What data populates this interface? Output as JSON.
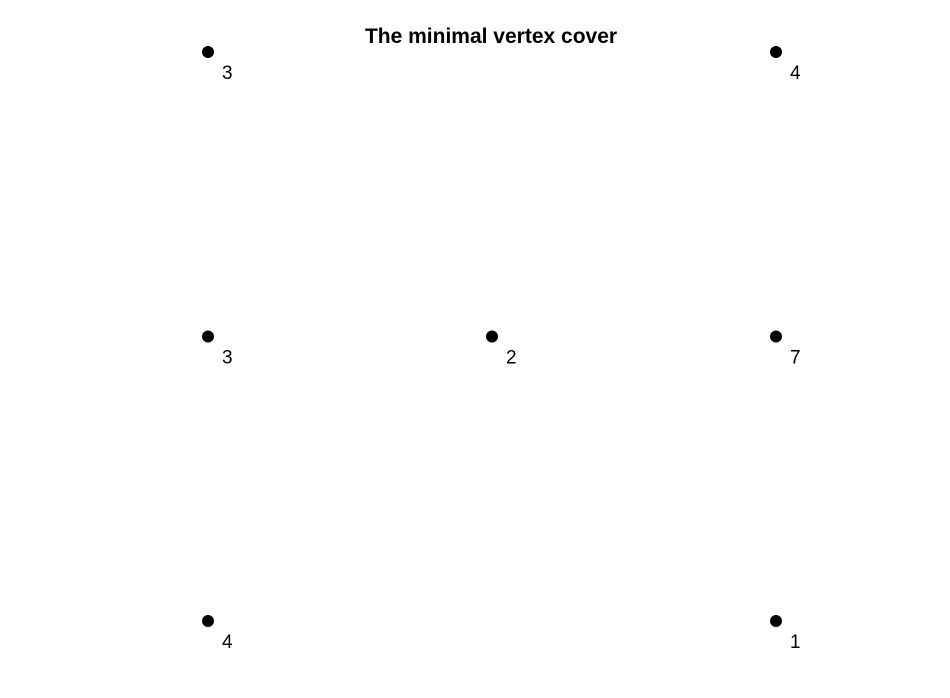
{
  "title": "The minimal vertex cover",
  "colors": {
    "vertex": "#000000",
    "text": "#000000",
    "background": "#ffffff"
  },
  "grid": {
    "columns": 3,
    "rows": 3
  },
  "vertices": [
    {
      "label": "3",
      "col": 0,
      "row": 0
    },
    {
      "label": "4",
      "col": 2,
      "row": 0
    },
    {
      "label": "3",
      "col": 0,
      "row": 1
    },
    {
      "label": "2",
      "col": 1,
      "row": 1
    },
    {
      "label": "7",
      "col": 2,
      "row": 1
    },
    {
      "label": "4",
      "col": 0,
      "row": 2
    },
    {
      "label": "1",
      "col": 2,
      "row": 2
    }
  ]
}
